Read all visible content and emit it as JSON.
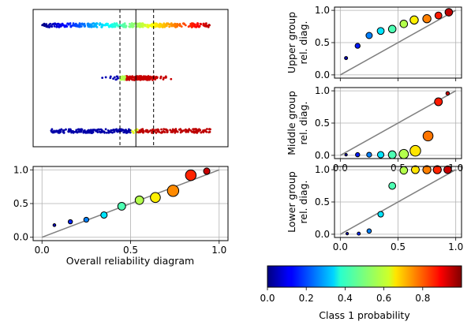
{
  "chart_data": [
    {
      "id": "strip",
      "type": "scatter",
      "rows": [
        "upper",
        "middle",
        "lower"
      ],
      "xlim": [
        -0.05,
        1.05
      ],
      "vlines": [
        {
          "x": 0.44,
          "style": "dashed"
        },
        {
          "x": 0.53,
          "style": "solid"
        },
        {
          "x": 0.63,
          "style": "dashed"
        }
      ],
      "groups": {
        "upper": {
          "center": 0.5,
          "spread": 0.5,
          "count": 380
        },
        "middle": {
          "center": 0.55,
          "spread": 0.25,
          "count": 180
        },
        "lower": {
          "center": 0.45,
          "spread": 0.4,
          "count": 300
        }
      }
    },
    {
      "id": "overall",
      "type": "scatter",
      "xlabel": "Overall reliability diagram",
      "ylabel": "",
      "xlim": [
        -0.05,
        1.05
      ],
      "ylim": [
        -0.05,
        1.05
      ],
      "xticks": [
        "0.0",
        "0.5",
        "1.0"
      ],
      "yticks": [
        "0.0",
        "0.5",
        "1.0"
      ],
      "grid": true,
      "points": [
        {
          "x": 0.07,
          "y": 0.18,
          "size": 0.2
        },
        {
          "x": 0.16,
          "y": 0.23,
          "size": 0.3
        },
        {
          "x": 0.25,
          "y": 0.26,
          "size": 0.35
        },
        {
          "x": 0.35,
          "y": 0.33,
          "size": 0.45
        },
        {
          "x": 0.45,
          "y": 0.46,
          "size": 0.55
        },
        {
          "x": 0.55,
          "y": 0.55,
          "size": 0.6
        },
        {
          "x": 0.64,
          "y": 0.59,
          "size": 0.7
        },
        {
          "x": 0.74,
          "y": 0.69,
          "size": 0.8
        },
        {
          "x": 0.84,
          "y": 0.92,
          "size": 0.75
        },
        {
          "x": 0.93,
          "y": 0.98,
          "size": 0.45
        }
      ]
    },
    {
      "id": "upper",
      "type": "scatter",
      "ylabel": [
        "Upper group",
        "rel. diag."
      ],
      "xlim": [
        -0.05,
        1.05
      ],
      "ylim": [
        -0.05,
        1.05
      ],
      "xticks": [],
      "yticks": [
        "0.0",
        "0.5",
        "1.0"
      ],
      "grid": true,
      "points": [
        {
          "x": 0.05,
          "y": 0.26,
          "size": 0.25
        },
        {
          "x": 0.15,
          "y": 0.45,
          "size": 0.4
        },
        {
          "x": 0.25,
          "y": 0.61,
          "size": 0.5
        },
        {
          "x": 0.35,
          "y": 0.68,
          "size": 0.55
        },
        {
          "x": 0.45,
          "y": 0.71,
          "size": 0.6
        },
        {
          "x": 0.55,
          "y": 0.79,
          "size": 0.6
        },
        {
          "x": 0.64,
          "y": 0.85,
          "size": 0.65
        },
        {
          "x": 0.75,
          "y": 0.87,
          "size": 0.65
        },
        {
          "x": 0.85,
          "y": 0.92,
          "size": 0.55
        },
        {
          "x": 0.94,
          "y": 0.97,
          "size": 0.6
        }
      ]
    },
    {
      "id": "middle",
      "type": "scatter",
      "ylabel": [
        "Middle group",
        "rel. diag."
      ],
      "xlim": [
        -0.05,
        1.05
      ],
      "ylim": [
        -0.05,
        1.05
      ],
      "xticks": [
        "0.0",
        "0.5",
        "1.0"
      ],
      "yticks": [
        "0.0",
        "0.5",
        "1.0"
      ],
      "grid": true,
      "points": [
        {
          "x": 0.05,
          "y": 0.01,
          "size": 0.08
        },
        {
          "x": 0.15,
          "y": 0.01,
          "size": 0.3
        },
        {
          "x": 0.25,
          "y": 0.01,
          "size": 0.35
        },
        {
          "x": 0.35,
          "y": 0.01,
          "size": 0.45
        },
        {
          "x": 0.45,
          "y": 0.01,
          "size": 0.55
        },
        {
          "x": 0.55,
          "y": 0.02,
          "size": 0.65
        },
        {
          "x": 0.65,
          "y": 0.07,
          "size": 0.75
        },
        {
          "x": 0.76,
          "y": 0.3,
          "size": 0.7
        },
        {
          "x": 0.85,
          "y": 0.83,
          "size": 0.55
        },
        {
          "x": 0.93,
          "y": 0.96,
          "size": 0.25
        }
      ]
    },
    {
      "id": "lower",
      "type": "scatter",
      "ylabel": [
        "Lower group",
        "rel. diag."
      ],
      "xlim": [
        -0.05,
        1.05
      ],
      "ylim": [
        -0.05,
        1.05
      ],
      "xticks": [
        "0.0",
        "0.5",
        "1.0"
      ],
      "yticks": [
        "0.0",
        "0.5",
        "1.0"
      ],
      "grid": true,
      "points": [
        {
          "x": 0.06,
          "y": 0.01,
          "size": 0.1
        },
        {
          "x": 0.16,
          "y": 0.01,
          "size": 0.25
        },
        {
          "x": 0.25,
          "y": 0.05,
          "size": 0.35
        },
        {
          "x": 0.35,
          "y": 0.31,
          "size": 0.45
        },
        {
          "x": 0.45,
          "y": 0.75,
          "size": 0.55
        },
        {
          "x": 0.55,
          "y": 0.99,
          "size": 0.6
        },
        {
          "x": 0.65,
          "y": 1.0,
          "size": 0.62
        },
        {
          "x": 0.75,
          "y": 1.0,
          "size": 0.64
        },
        {
          "x": 0.84,
          "y": 1.0,
          "size": 0.64
        },
        {
          "x": 0.93,
          "y": 1.0,
          "size": 0.6
        }
      ]
    }
  ],
  "colorbar": {
    "label": "Class 1 probability",
    "ticks": [
      "0.0",
      "0.2",
      "0.4",
      "0.6",
      "0.8"
    ],
    "tick_values": [
      0.0,
      0.2,
      0.4,
      0.6,
      0.8
    ],
    "range": [
      0.0,
      1.0
    ],
    "colormap": "jet"
  },
  "colors": {
    "marker_edge": "#000000",
    "diagonal": "#808080",
    "grid": "#b0b0b0",
    "vline": "#000000"
  }
}
